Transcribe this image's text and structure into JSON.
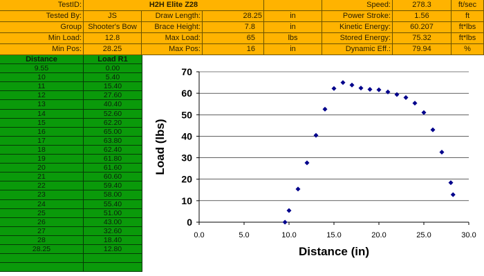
{
  "header": {
    "test_id_label": "TestID:",
    "test_id": "H2H Elite Z28",
    "tested_by_label": "Tested By:",
    "tested_by": "JS",
    "group_label": "Group",
    "group": "Shooter's Bow",
    "min_load_label": "Min Load:",
    "min_load": "12.8",
    "min_pos_label": "Min Pos:",
    "min_pos": "28.25",
    "draw_length_label": "Draw Length:",
    "draw_length": "28.25",
    "draw_length_unit": "in",
    "brace_height_label": "Brace Height:",
    "brace_height": "7.8",
    "brace_height_unit": "in",
    "max_load_label": "Max Load:",
    "max_load": "65",
    "max_load_unit": "lbs",
    "max_pos_label": "Max Pos:",
    "max_pos": "16",
    "max_pos_unit": "in",
    "speed_label": "Speed:",
    "speed": "278.3",
    "speed_unit": "ft/sec",
    "power_stroke_label": "Power Stroke:",
    "power_stroke": "1.56",
    "power_stroke_unit": "ft",
    "kinetic_label": "Kinetic Energy:",
    "kinetic": "60.207",
    "kinetic_unit": "ft*lbs",
    "stored_label": "Stored Energy:",
    "stored": "75.32",
    "stored_unit": "ft*lbs",
    "eff_label": "Dynamic Eff.:",
    "eff": "79.94",
    "eff_unit": "%"
  },
  "table": {
    "headers": [
      "Distance",
      "Load R1"
    ],
    "rows": [
      [
        "9.55",
        "0.00"
      ],
      [
        "10",
        "5.40"
      ],
      [
        "11",
        "15.40"
      ],
      [
        "12",
        "27.60"
      ],
      [
        "13",
        "40.40"
      ],
      [
        "14",
        "52.60"
      ],
      [
        "15",
        "62.20"
      ],
      [
        "16",
        "65.00"
      ],
      [
        "17",
        "63.80"
      ],
      [
        "18",
        "62.40"
      ],
      [
        "19",
        "61.80"
      ],
      [
        "20",
        "61.60"
      ],
      [
        "21",
        "60.60"
      ],
      [
        "22",
        "59.40"
      ],
      [
        "23",
        "58.00"
      ],
      [
        "24",
        "55.40"
      ],
      [
        "25",
        "51.00"
      ],
      [
        "26",
        "43.00"
      ],
      [
        "27",
        "32.60"
      ],
      [
        "28",
        "18.40"
      ],
      [
        "28.25",
        "12.80"
      ],
      [
        "",
        ""
      ],
      [
        "",
        ""
      ]
    ]
  },
  "chart_data": {
    "type": "scatter",
    "xlabel": "Distance (in)",
    "ylabel": "Load (lbs)",
    "xlim": [
      0,
      30
    ],
    "ylim": [
      0,
      70
    ],
    "xticks": [
      "0.0",
      "5.0",
      "10.0",
      "15.0",
      "20.0",
      "25.0",
      "30.0"
    ],
    "yticks": [
      "0",
      "10",
      "20",
      "30",
      "40",
      "50",
      "60",
      "70"
    ],
    "grid": "horizontal",
    "marker_color": "#00008B",
    "x": [
      9.55,
      10,
      11,
      12,
      13,
      14,
      15,
      16,
      17,
      18,
      19,
      20,
      21,
      22,
      23,
      24,
      25,
      26,
      27,
      28,
      28.25
    ],
    "y": [
      0,
      5.4,
      15.4,
      27.6,
      40.4,
      52.6,
      62.2,
      65,
      63.8,
      62.4,
      61.8,
      61.6,
      60.6,
      59.4,
      58,
      55.4,
      51,
      43,
      32.6,
      18.4,
      12.8
    ]
  }
}
